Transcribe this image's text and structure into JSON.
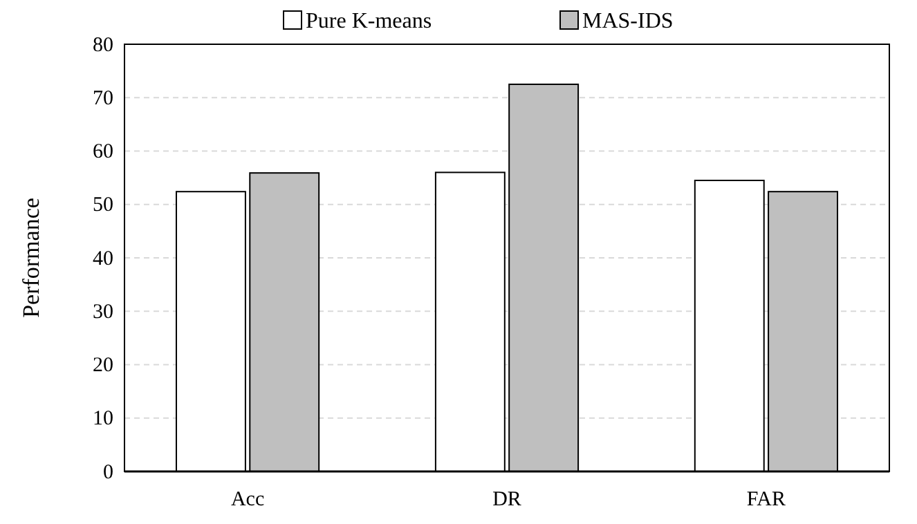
{
  "chart_data": {
    "type": "bar",
    "ylabel": "Performance",
    "categories": [
      "Acc",
      "DR",
      "FAR"
    ],
    "series": [
      {
        "name": "Pure K-means",
        "color": "#ffffff",
        "values": [
          52.4,
          56.0,
          54.5
        ]
      },
      {
        "name": "MAS-IDS",
        "color": "#bfbfbf",
        "values": [
          55.9,
          72.5,
          52.4
        ]
      }
    ],
    "ylim": [
      0,
      80
    ],
    "yticks": [
      0,
      10,
      20,
      30,
      40,
      50,
      60,
      70,
      80
    ],
    "grid": "y",
    "legend": "top"
  }
}
